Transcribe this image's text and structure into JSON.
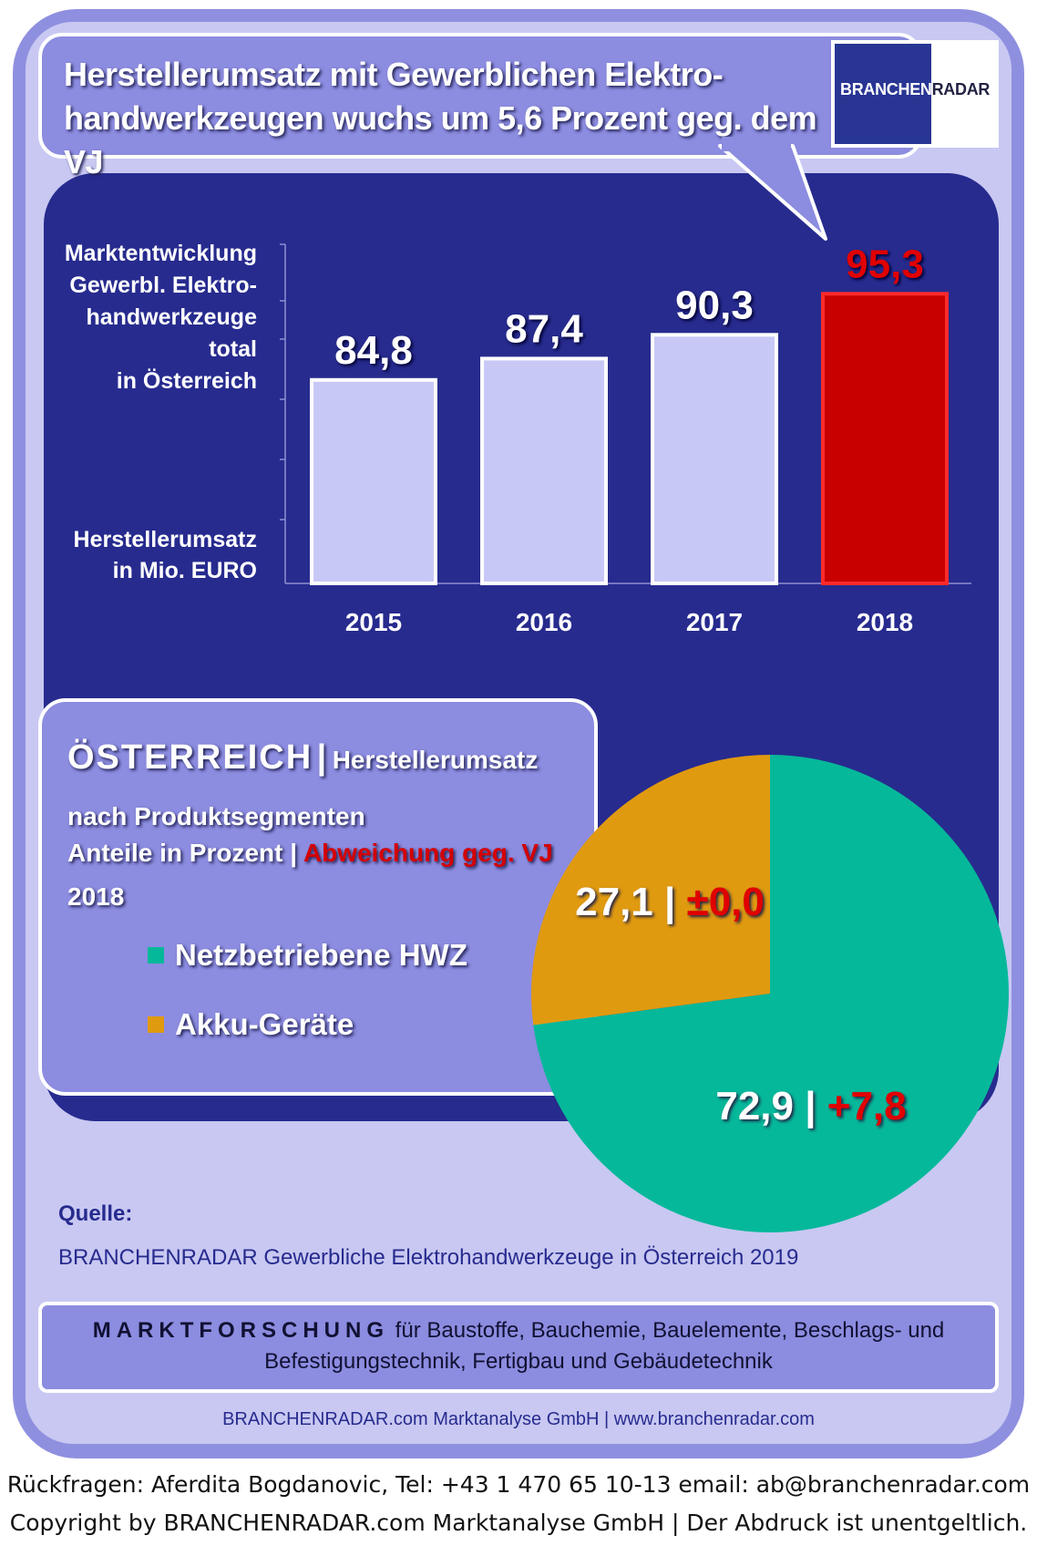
{
  "header": {
    "title_line1": "Herstellerumsatz mit  Gewerblichen Elektro-",
    "title_line2": "handwerkzeugen wuchs um 5,6 Prozent geg. dem VJ"
  },
  "logo": {
    "part1": "BRANCHEN",
    "part2": "RADAR"
  },
  "bar_axis_text": {
    "desc_lines": [
      "Marktentwicklung",
      "Gewerbl. Elektro-",
      "handwerkzeuge",
      "total",
      "in Österreich"
    ],
    "unit_lines": [
      "Herstellerumsatz",
      "in Mio. EURO"
    ]
  },
  "pie_box": {
    "country": "ÖSTERREICH",
    "separator": "|",
    "heading_rest": "Herstellerumsatz",
    "line2": "nach Produktsegmenten",
    "line3_prefix": "Anteile in Prozent |",
    "line3_highlight": "Abweichung geg. VJ",
    "year": "2018"
  },
  "colors": {
    "panel_dark": "#272b8e",
    "bar_default": "#c8c8f7",
    "bar_highlight": "#c80000",
    "highlight_text": "#e00000",
    "pie_netz": "#06b89a",
    "pie_akku": "#e09a10"
  },
  "chart_data": [
    {
      "type": "bar",
      "categories": [
        "2015",
        "2016",
        "2017",
        "2018"
      ],
      "values": [
        84.8,
        87.4,
        90.3,
        95.3
      ],
      "value_labels": [
        "84,8",
        "87,4",
        "90,3",
        "95,3"
      ],
      "highlight_index": 3,
      "ylabel": "Herstellerumsatz in Mio. EURO",
      "grid": false
    },
    {
      "type": "pie",
      "slices": [
        {
          "name": "Netzbetriebene HWZ",
          "value": 72.9,
          "label": "72,9",
          "change_label": "+7,8",
          "color": "#06b89a"
        },
        {
          "name": "Akku-Geräte",
          "value": 27.1,
          "label": "27,1",
          "change_label": "±0,0",
          "color": "#e09a10"
        }
      ],
      "label_separator": "|",
      "legend": "left"
    }
  ],
  "source": {
    "heading": "Quelle:",
    "text": "BRANCHENRADAR Gewerbliche Elektrohandwerkzeuge in Österreich 2019"
  },
  "marktforschung": {
    "strong": "MARKTFORSCHUNG",
    "line1_rest": " für Baustoffe, Bauchemie, Bauelemente, Beschlags- und",
    "line2": "Befestigungstechnik, Fertigbau und Gebäudetechnik"
  },
  "company_line": "BRANCHENRADAR.com Marktanalyse GmbH | www.branchenradar.com",
  "footer": {
    "line1": "Rückfragen: Aferdita Bogdanovic, Tel: +43 1 470 65 10-13 email: ab@branchenradar.com",
    "line2": "Copyright by BRANCHENRADAR.com  Marktanalyse GmbH | Der Abdruck ist unentgeltlich."
  }
}
